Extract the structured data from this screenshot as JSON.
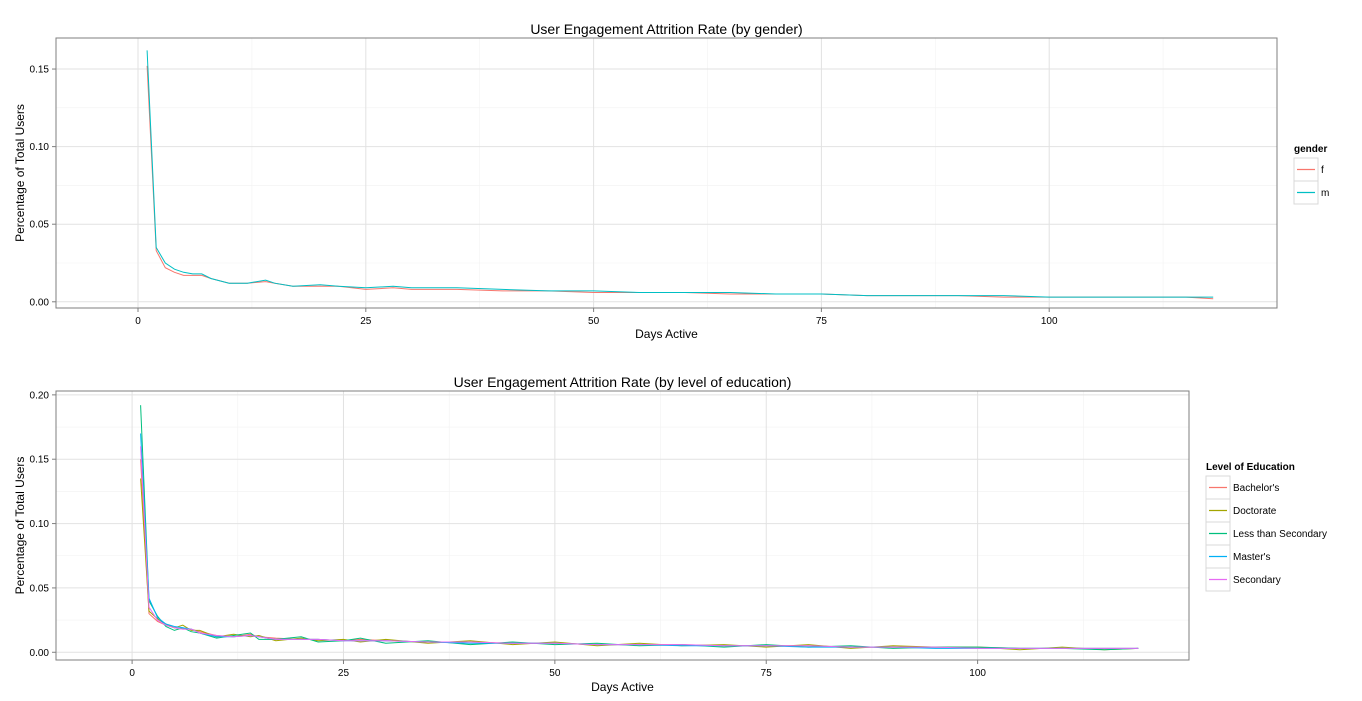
{
  "chart_data": [
    {
      "type": "line",
      "title": "User Engagement Attrition Rate (by gender)",
      "xlabel": "Days Active",
      "ylabel": "Percentage of Total Users",
      "xlim": [
        -9,
        125
      ],
      "ylim": [
        -0.004,
        0.17
      ],
      "x_ticks": [
        0,
        25,
        50,
        75,
        100
      ],
      "x_tick_labels": [
        "0",
        "25",
        "50",
        "75",
        "100"
      ],
      "y_ticks": [
        0,
        0.05,
        0.1,
        0.15
      ],
      "y_tick_labels": [
        "0.00",
        "0.05",
        "0.10",
        "0.15"
      ],
      "grid": true,
      "legend_position": "right",
      "legend_title": "gender",
      "series": [
        {
          "name": "f",
          "color": "#F8766D",
          "points": [
            [
              1,
              0.152
            ],
            [
              2,
              0.033
            ],
            [
              3,
              0.022
            ],
            [
              4,
              0.019
            ],
            [
              5,
              0.017
            ],
            [
              6,
              0.017
            ],
            [
              7,
              0.017
            ],
            [
              8,
              0.015
            ],
            [
              10,
              0.012
            ],
            [
              12,
              0.012
            ],
            [
              14,
              0.013
            ],
            [
              15,
              0.012
            ],
            [
              17,
              0.01
            ],
            [
              20,
              0.01
            ],
            [
              22,
              0.01
            ],
            [
              25,
              0.008
            ],
            [
              28,
              0.009
            ],
            [
              30,
              0.008
            ],
            [
              35,
              0.008
            ],
            [
              40,
              0.007
            ],
            [
              45,
              0.007
            ],
            [
              50,
              0.006
            ],
            [
              55,
              0.006
            ],
            [
              60,
              0.006
            ],
            [
              65,
              0.005
            ],
            [
              70,
              0.005
            ],
            [
              75,
              0.005
            ],
            [
              80,
              0.004
            ],
            [
              85,
              0.004
            ],
            [
              90,
              0.004
            ],
            [
              95,
              0.003
            ],
            [
              100,
              0.003
            ],
            [
              105,
              0.003
            ],
            [
              110,
              0.003
            ],
            [
              115,
              0.003
            ],
            [
              118,
              0.002
            ]
          ]
        },
        {
          "name": "m",
          "color": "#00BFC4",
          "points": [
            [
              1,
              0.162
            ],
            [
              2,
              0.035
            ],
            [
              3,
              0.025
            ],
            [
              4,
              0.021
            ],
            [
              5,
              0.019
            ],
            [
              6,
              0.018
            ],
            [
              7,
              0.018
            ],
            [
              8,
              0.015
            ],
            [
              10,
              0.012
            ],
            [
              12,
              0.012
            ],
            [
              14,
              0.014
            ],
            [
              15,
              0.012
            ],
            [
              17,
              0.01
            ],
            [
              20,
              0.011
            ],
            [
              22,
              0.01
            ],
            [
              25,
              0.009
            ],
            [
              28,
              0.01
            ],
            [
              30,
              0.009
            ],
            [
              35,
              0.009
            ],
            [
              40,
              0.008
            ],
            [
              45,
              0.007
            ],
            [
              50,
              0.007
            ],
            [
              55,
              0.006
            ],
            [
              60,
              0.006
            ],
            [
              65,
              0.006
            ],
            [
              70,
              0.005
            ],
            [
              75,
              0.005
            ],
            [
              80,
              0.004
            ],
            [
              85,
              0.004
            ],
            [
              90,
              0.004
            ],
            [
              95,
              0.004
            ],
            [
              100,
              0.003
            ],
            [
              105,
              0.003
            ],
            [
              110,
              0.003
            ],
            [
              115,
              0.003
            ],
            [
              118,
              0.003
            ]
          ]
        }
      ]
    },
    {
      "type": "line",
      "title": "User Engagement Attrition Rate (by level of education)",
      "xlabel": "Days Active",
      "ylabel": "Percentage of Total Users",
      "xlim": [
        -9,
        125
      ],
      "ylim": [
        -0.006,
        0.203
      ],
      "x_ticks": [
        0,
        25,
        50,
        75,
        100
      ],
      "x_tick_labels": [
        "0",
        "25",
        "50",
        "75",
        "100"
      ],
      "y_ticks": [
        0,
        0.05,
        0.1,
        0.15,
        0.2
      ],
      "y_tick_labels": [
        "0.00",
        "0.05",
        "0.10",
        "0.15",
        "0.20"
      ],
      "grid": true,
      "legend_position": "right",
      "legend_title": "Level of Education",
      "series": [
        {
          "name": "Bachelor's",
          "color": "#F8766D",
          "points": [
            [
              1,
              0.15
            ],
            [
              2,
              0.03
            ],
            [
              3,
              0.024
            ],
            [
              4,
              0.021
            ],
            [
              5,
              0.019
            ],
            [
              6,
              0.018
            ],
            [
              7,
              0.018
            ],
            [
              8,
              0.016
            ],
            [
              10,
              0.013
            ],
            [
              12,
              0.012
            ],
            [
              14,
              0.014
            ],
            [
              15,
              0.012
            ],
            [
              17,
              0.011
            ],
            [
              20,
              0.01
            ],
            [
              22,
              0.01
            ],
            [
              25,
              0.009
            ],
            [
              27,
              0.01
            ],
            [
              30,
              0.009
            ],
            [
              35,
              0.008
            ],
            [
              40,
              0.008
            ],
            [
              45,
              0.007
            ],
            [
              50,
              0.007
            ],
            [
              55,
              0.006
            ],
            [
              60,
              0.006
            ],
            [
              65,
              0.006
            ],
            [
              70,
              0.005
            ],
            [
              75,
              0.005
            ],
            [
              80,
              0.005
            ],
            [
              85,
              0.004
            ],
            [
              90,
              0.004
            ],
            [
              95,
              0.004
            ],
            [
              100,
              0.004
            ],
            [
              105,
              0.003
            ],
            [
              110,
              0.003
            ],
            [
              115,
              0.003
            ],
            [
              119,
              0.003
            ]
          ]
        },
        {
          "name": "Doctorate",
          "color": "#A3A500",
          "points": [
            [
              1,
              0.135
            ],
            [
              2,
              0.032
            ],
            [
              3,
              0.026
            ],
            [
              4,
              0.022
            ],
            [
              5,
              0.019
            ],
            [
              6,
              0.021
            ],
            [
              7,
              0.017
            ],
            [
              8,
              0.017
            ],
            [
              10,
              0.012
            ],
            [
              12,
              0.014
            ],
            [
              14,
              0.012
            ],
            [
              15,
              0.013
            ],
            [
              17,
              0.009
            ],
            [
              20,
              0.011
            ],
            [
              22,
              0.009
            ],
            [
              25,
              0.01
            ],
            [
              27,
              0.008
            ],
            [
              30,
              0.01
            ],
            [
              35,
              0.007
            ],
            [
              40,
              0.009
            ],
            [
              45,
              0.006
            ],
            [
              50,
              0.008
            ],
            [
              55,
              0.005
            ],
            [
              60,
              0.007
            ],
            [
              65,
              0.005
            ],
            [
              70,
              0.006
            ],
            [
              75,
              0.004
            ],
            [
              80,
              0.006
            ],
            [
              85,
              0.003
            ],
            [
              90,
              0.005
            ],
            [
              95,
              0.004
            ],
            [
              100,
              0.004
            ],
            [
              105,
              0.002
            ],
            [
              110,
              0.004
            ],
            [
              115,
              0.002
            ],
            [
              119,
              0.003
            ]
          ]
        },
        {
          "name": "Less than Secondary",
          "color": "#00BF7D",
          "points": [
            [
              1,
              0.192
            ],
            [
              2,
              0.04
            ],
            [
              3,
              0.028
            ],
            [
              4,
              0.02
            ],
            [
              5,
              0.017
            ],
            [
              6,
              0.019
            ],
            [
              7,
              0.016
            ],
            [
              8,
              0.015
            ],
            [
              10,
              0.011
            ],
            [
              12,
              0.013
            ],
            [
              14,
              0.015
            ],
            [
              15,
              0.01
            ],
            [
              17,
              0.01
            ],
            [
              20,
              0.012
            ],
            [
              22,
              0.008
            ],
            [
              25,
              0.009
            ],
            [
              27,
              0.011
            ],
            [
              30,
              0.007
            ],
            [
              35,
              0.009
            ],
            [
              40,
              0.006
            ],
            [
              45,
              0.008
            ],
            [
              50,
              0.006
            ],
            [
              55,
              0.007
            ],
            [
              60,
              0.005
            ],
            [
              65,
              0.006
            ],
            [
              70,
              0.004
            ],
            [
              75,
              0.006
            ],
            [
              80,
              0.004
            ],
            [
              85,
              0.005
            ],
            [
              90,
              0.003
            ],
            [
              95,
              0.004
            ],
            [
              100,
              0.004
            ],
            [
              105,
              0.003
            ],
            [
              110,
              0.003
            ],
            [
              115,
              0.002
            ],
            [
              119,
              0.003
            ]
          ]
        },
        {
          "name": "Master's",
          "color": "#00B0F6",
          "points": [
            [
              1,
              0.17
            ],
            [
              2,
              0.042
            ],
            [
              3,
              0.027
            ],
            [
              4,
              0.022
            ],
            [
              5,
              0.02
            ],
            [
              6,
              0.019
            ],
            [
              7,
              0.018
            ],
            [
              8,
              0.015
            ],
            [
              10,
              0.012
            ],
            [
              12,
              0.012
            ],
            [
              14,
              0.013
            ],
            [
              15,
              0.012
            ],
            [
              17,
              0.01
            ],
            [
              20,
              0.01
            ],
            [
              22,
              0.01
            ],
            [
              25,
              0.009
            ],
            [
              27,
              0.009
            ],
            [
              30,
              0.009
            ],
            [
              35,
              0.008
            ],
            [
              40,
              0.007
            ],
            [
              45,
              0.007
            ],
            [
              50,
              0.007
            ],
            [
              55,
              0.006
            ],
            [
              60,
              0.006
            ],
            [
              65,
              0.005
            ],
            [
              70,
              0.005
            ],
            [
              75,
              0.005
            ],
            [
              80,
              0.004
            ],
            [
              85,
              0.004
            ],
            [
              90,
              0.004
            ],
            [
              95,
              0.003
            ],
            [
              100,
              0.003
            ],
            [
              105,
              0.003
            ],
            [
              110,
              0.003
            ],
            [
              115,
              0.003
            ],
            [
              119,
              0.003
            ]
          ]
        },
        {
          "name": "Secondary",
          "color": "#E76BF3",
          "points": [
            [
              1,
              0.16
            ],
            [
              2,
              0.035
            ],
            [
              3,
              0.025
            ],
            [
              4,
              0.021
            ],
            [
              5,
              0.019
            ],
            [
              6,
              0.018
            ],
            [
              7,
              0.018
            ],
            [
              8,
              0.015
            ],
            [
              10,
              0.013
            ],
            [
              12,
              0.012
            ],
            [
              14,
              0.013
            ],
            [
              15,
              0.012
            ],
            [
              17,
              0.01
            ],
            [
              20,
              0.01
            ],
            [
              22,
              0.01
            ],
            [
              25,
              0.009
            ],
            [
              27,
              0.009
            ],
            [
              30,
              0.009
            ],
            [
              35,
              0.008
            ],
            [
              40,
              0.008
            ],
            [
              45,
              0.007
            ],
            [
              50,
              0.007
            ],
            [
              55,
              0.006
            ],
            [
              60,
              0.006
            ],
            [
              65,
              0.006
            ],
            [
              70,
              0.005
            ],
            [
              75,
              0.005
            ],
            [
              80,
              0.005
            ],
            [
              85,
              0.004
            ],
            [
              90,
              0.004
            ],
            [
              95,
              0.004
            ],
            [
              100,
              0.003
            ],
            [
              105,
              0.003
            ],
            [
              110,
              0.003
            ],
            [
              115,
              0.003
            ],
            [
              119,
              0.003
            ]
          ]
        }
      ]
    }
  ]
}
